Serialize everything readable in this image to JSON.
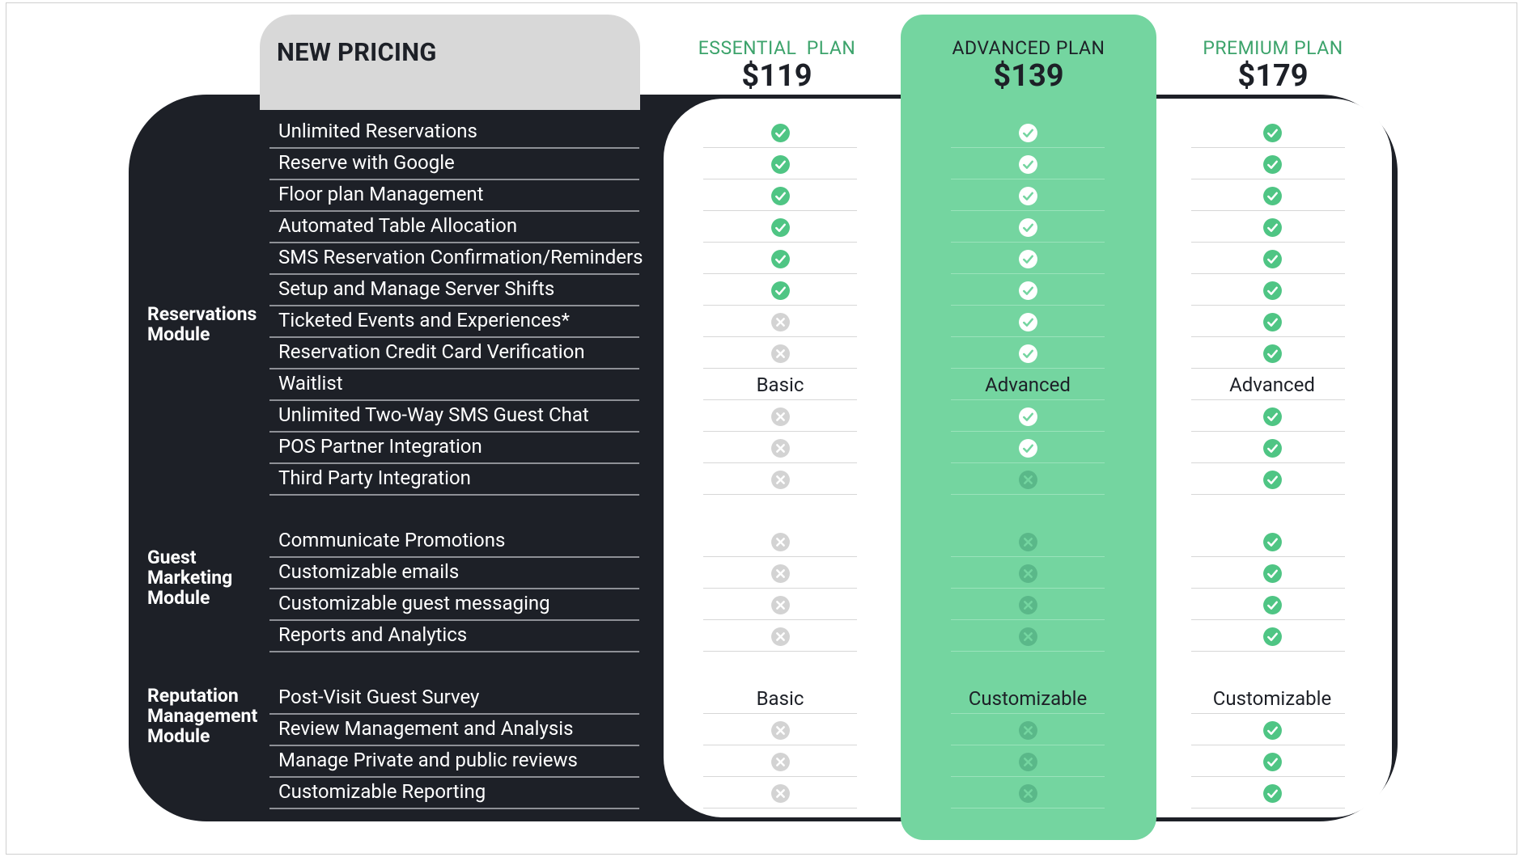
{
  "header": {
    "title": "NEW PRICING"
  },
  "plans": [
    {
      "name": "ESSENTIAL  PLAN",
      "price": "$119"
    },
    {
      "name": "ADVANCED PLAN",
      "price": "$139"
    },
    {
      "name": "PREMIUM PLAN",
      "price": "$179"
    }
  ],
  "colors": {
    "dark": "#1d2027",
    "accent_green": "#74d5a0",
    "check_green": "#4fc584",
    "cross_gray": "#d3d3d3",
    "plan_label_green": "#3ca36b"
  },
  "icons": {
    "check": "check-circle-icon",
    "cross": "x-circle-icon"
  },
  "modules": [
    {
      "name": "Reservations Module",
      "features": [
        {
          "label": "Unlimited Reservations",
          "values": [
            "check",
            "check",
            "check"
          ]
        },
        {
          "label": "Reserve with Google",
          "values": [
            "check",
            "check",
            "check"
          ]
        },
        {
          "label": "Floor plan Management",
          "values": [
            "check",
            "check",
            "check"
          ]
        },
        {
          "label": "Automated Table Allocation",
          "values": [
            "check",
            "check",
            "check"
          ]
        },
        {
          "label": "SMS Reservation Confirmation/Reminders",
          "values": [
            "check",
            "check",
            "check"
          ]
        },
        {
          "label": "Setup and Manage Server Shifts",
          "values": [
            "check",
            "check",
            "check"
          ]
        },
        {
          "label": "Ticketed Events and Experiences*",
          "values": [
            "cross",
            "check",
            "check"
          ]
        },
        {
          "label": "Reservation Credit Card Verification",
          "values": [
            "cross",
            "check",
            "check"
          ]
        },
        {
          "label": "Waitlist",
          "values": [
            "Basic",
            "Advanced",
            "Advanced"
          ]
        },
        {
          "label": "Unlimited Two-Way SMS Guest Chat",
          "values": [
            "cross",
            "check",
            "check"
          ]
        },
        {
          "label": "POS Partner Integration",
          "values": [
            "cross",
            "check",
            "check"
          ]
        },
        {
          "label": "Third Party Integration",
          "values": [
            "cross",
            "cross",
            "check"
          ]
        }
      ]
    },
    {
      "name": "Guest Marketing Module",
      "features": [
        {
          "label": "Communicate Promotions",
          "values": [
            "cross",
            "cross",
            "check"
          ]
        },
        {
          "label": "Customizable emails",
          "values": [
            "cross",
            "cross",
            "check"
          ]
        },
        {
          "label": "Customizable guest messaging",
          "values": [
            "cross",
            "cross",
            "check"
          ]
        },
        {
          "label": "Reports and Analytics",
          "values": [
            "cross",
            "cross",
            "check"
          ]
        }
      ]
    },
    {
      "name": "Reputation Management Module",
      "features": [
        {
          "label": "Post-Visit Guest Survey",
          "values": [
            "Basic",
            "Customizable",
            "Customizable"
          ]
        },
        {
          "label": "Review Management and Analysis",
          "values": [
            "cross",
            "cross",
            "check"
          ]
        },
        {
          "label": "Manage Private and public reviews",
          "values": [
            "cross",
            "cross",
            "check"
          ]
        },
        {
          "label": "Customizable Reporting",
          "values": [
            "cross",
            "cross",
            "check"
          ]
        }
      ]
    }
  ]
}
